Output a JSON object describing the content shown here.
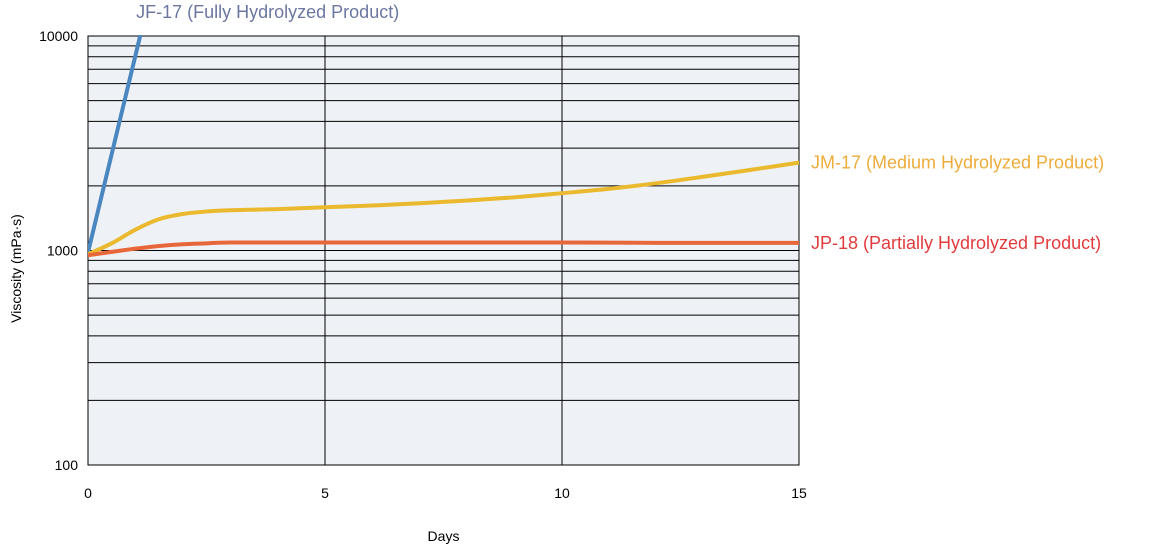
{
  "chart_data": {
    "type": "line",
    "xlabel": "Days",
    "ylabel": "Viscosity (mPa·s)",
    "xlim": [
      0,
      15
    ],
    "ylim": [
      100,
      10000
    ],
    "yscale": "log",
    "grid": true,
    "legend": "direct labels at line ends",
    "x_ticks": [
      {
        "value": 0,
        "label": "0"
      },
      {
        "value": 5,
        "label": "5"
      },
      {
        "value": 10,
        "label": "10"
      },
      {
        "value": 15,
        "label": "15"
      }
    ],
    "y_ticks": [
      {
        "value": 100,
        "label": "100"
      },
      {
        "value": 1000,
        "label": "1000"
      },
      {
        "value": 10000,
        "label": "10000"
      }
    ],
    "plot_background": "#eef2f6",
    "series": [
      {
        "name": "JF-17 (Fully Hydrolyzed Product)",
        "color": "#4a86c0",
        "label_color": "#6b77a0",
        "points": [
          [
            0,
            980
          ],
          [
            1.1,
            10000
          ]
        ]
      },
      {
        "name": "JM-17 (Medium Hydrolyzed Product)",
        "color": "#ebb92e",
        "label_color": "#eeac3a",
        "points": [
          [
            0,
            960
          ],
          [
            0.5,
            1080
          ],
          [
            1,
            1250
          ],
          [
            1.5,
            1400
          ],
          [
            2,
            1480
          ],
          [
            2.5,
            1520
          ],
          [
            3,
            1540
          ],
          [
            4,
            1560
          ],
          [
            5,
            1590
          ],
          [
            6,
            1620
          ],
          [
            7,
            1660
          ],
          [
            8,
            1710
          ],
          [
            9,
            1770
          ],
          [
            10,
            1850
          ],
          [
            11,
            1940
          ],
          [
            12,
            2060
          ],
          [
            13,
            2210
          ],
          [
            14,
            2380
          ],
          [
            15,
            2570
          ]
        ]
      },
      {
        "name": "JP-18 (Partially Hydrolyzed Product)",
        "color": "#e8673a",
        "label_color": "#e23b3d",
        "points": [
          [
            0,
            950
          ],
          [
            0.5,
            985
          ],
          [
            1,
            1020
          ],
          [
            1.5,
            1050
          ],
          [
            2,
            1070
          ],
          [
            2.5,
            1080
          ],
          [
            3,
            1090
          ],
          [
            5,
            1090
          ],
          [
            7,
            1090
          ],
          [
            10,
            1090
          ],
          [
            12,
            1085
          ],
          [
            15,
            1085
          ]
        ]
      }
    ]
  }
}
